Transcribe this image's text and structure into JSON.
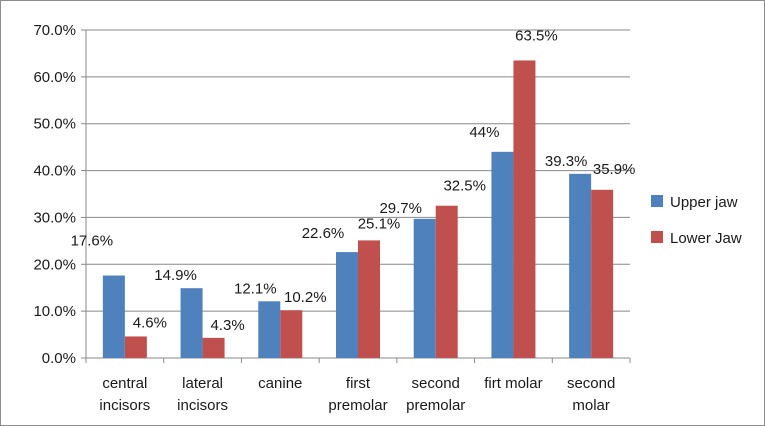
{
  "chart_data": {
    "type": "bar",
    "title": "",
    "xlabel": "",
    "ylabel": "",
    "ylim": [
      0,
      70
    ],
    "y_ticks": [
      "0.0%",
      "10.0%",
      "20.0%",
      "30.0%",
      "40.0%",
      "50.0%",
      "60.0%",
      "70.0%"
    ],
    "grid": true,
    "legend_position": "right",
    "categories": [
      [
        "central",
        "incisors"
      ],
      [
        "lateral",
        "incisors"
      ],
      [
        "canine"
      ],
      [
        "first",
        "premolar"
      ],
      [
        "second",
        "premolar"
      ],
      [
        "firt molar"
      ],
      [
        "second",
        "molar"
      ]
    ],
    "series": [
      {
        "name": "Upper jaw",
        "color": "#4f81bd",
        "values": [
          17.6,
          14.9,
          12.1,
          22.6,
          29.7,
          44,
          39.3
        ],
        "labels": [
          "17.6%",
          "14.9%",
          "12.1%",
          "22.6%",
          "29.7%",
          "44%",
          "39.3%"
        ]
      },
      {
        "name": "Lower Jaw",
        "color": "#c0504d",
        "values": [
          4.6,
          4.3,
          10.2,
          25.1,
          32.5,
          63.5,
          35.9
        ],
        "labels": [
          "4.6%",
          "4.3%",
          "10.2%",
          "25.1%",
          "32.5%",
          "63.5%",
          "35.9%"
        ]
      }
    ]
  }
}
